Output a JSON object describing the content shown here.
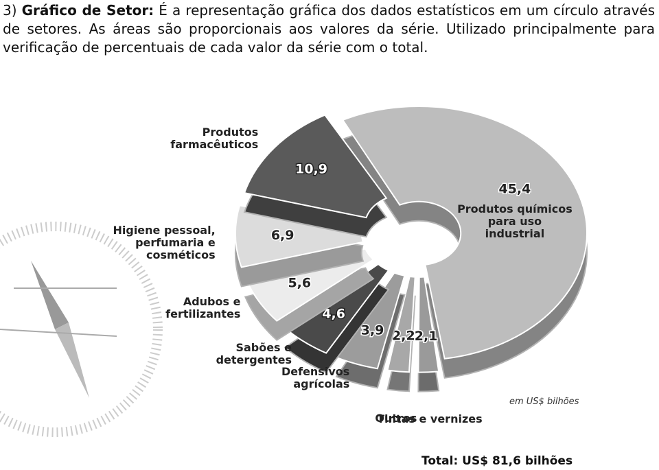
{
  "paragraph": {
    "number": "3)",
    "term": "Gráfico de Setor:",
    "text": "É a representação gráfica dos dados estatísticos em um círculo através de setores. As áreas são proporcionais aos valores da série. Utilizado principalmente para verificação de percentuais de cada valor da série com o total."
  },
  "chart_data": {
    "type": "pie",
    "categories": [
      "Produtos químicos para uso industrial",
      "Tintas e vernizes",
      "Outros",
      "Defensivos agrícolas",
      "Sabões e detergentes",
      "Adubos e fertilizantes",
      "Higiene pessoal, perfumaria e cosméticos",
      "Produtos farmacêuticos"
    ],
    "values": [
      45.4,
      2.1,
      2.2,
      3.9,
      4.6,
      5.6,
      6.9,
      10.9
    ],
    "value_labels": [
      "45,4",
      "2,1",
      "2,2",
      "3,9",
      "4,6",
      "5,6",
      "6,9",
      "10,9"
    ],
    "colors": [
      "#bdbdbd",
      "#9a9a9a",
      "#a8a8a8",
      "#9c9c9c",
      "#4a4a4a",
      "#ececec",
      "#dcdcdc",
      "#5a5a5a"
    ],
    "note": "em US$ bilhões",
    "total": "Total: US$ 81,6 bilhões"
  }
}
